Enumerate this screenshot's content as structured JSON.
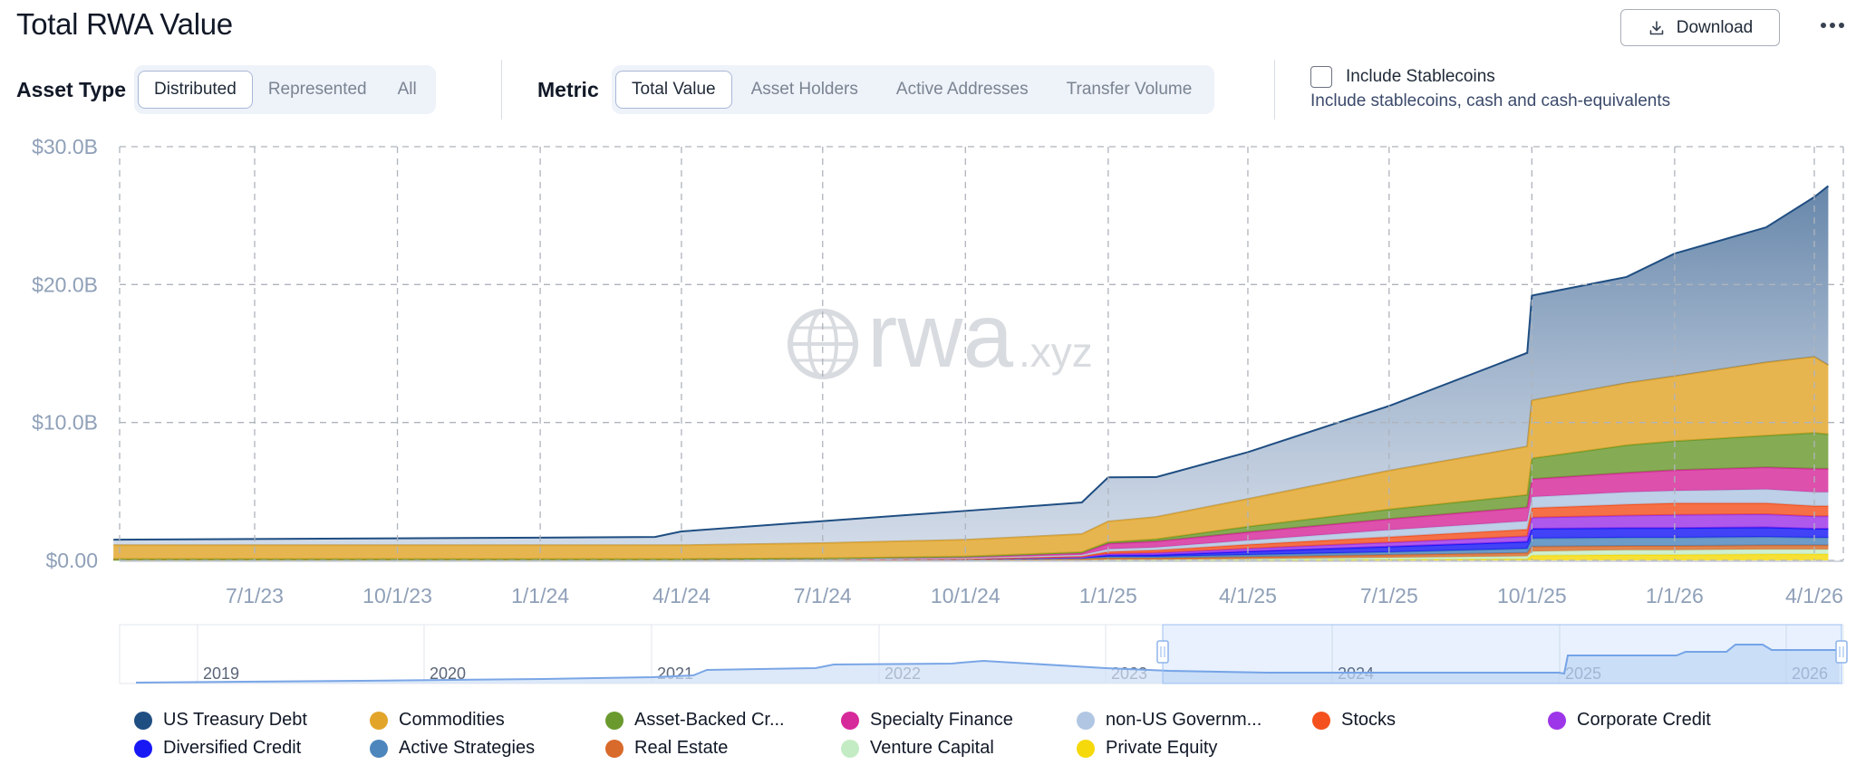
{
  "header": {
    "title": "Total RWA Value",
    "download_label": "Download",
    "more_icon": "more-horizontal-icon"
  },
  "controls": {
    "asset_type": {
      "label": "Asset Type",
      "options": [
        "Distributed",
        "Represented",
        "All"
      ],
      "selected": "Distributed"
    },
    "metric": {
      "label": "Metric",
      "options": [
        "Total Value",
        "Asset Holders",
        "Active Addresses",
        "Transfer Volume"
      ],
      "selected": "Total Value"
    },
    "stablecoins": {
      "label": "Include Stablecoins",
      "description": "Include stablecoins, cash and cash-equivalents",
      "checked": false
    }
  },
  "watermark": {
    "main": "rwa",
    "suffix": ".xyz"
  },
  "chart_data": {
    "type": "area",
    "stacked": true,
    "y_ticks": [
      "$30.0B",
      "$20.0B",
      "$10.0B",
      "$0.00"
    ],
    "ylim": [
      0,
      30
    ],
    "y_unit": "$B",
    "x_ticks": [
      "7/1/23",
      "10/1/23",
      "1/1/24",
      "4/1/24",
      "7/1/24",
      "10/1/24",
      "1/1/25",
      "4/1/25",
      "7/1/25",
      "10/1/25",
      "1/1/26",
      "4/1/26"
    ],
    "x": [
      "2023-04-01",
      "2023-07-01",
      "2023-10-01",
      "2024-01-01",
      "2024-03-15",
      "2024-04-01",
      "2024-07-01",
      "2024-10-01",
      "2024-12-15",
      "2025-01-01",
      "2025-02-01",
      "2025-04-01",
      "2025-07-01",
      "2025-09-28",
      "2025-10-01",
      "2025-12-01",
      "2026-01-01",
      "2026-03-01",
      "2026-04-01",
      "2026-04-10"
    ],
    "grid": true,
    "series": [
      {
        "name": "Private Equity",
        "color": "#f5d90a",
        "values": [
          0,
          0,
          0,
          0,
          0,
          0,
          0,
          0,
          0,
          0,
          0,
          0,
          0.05,
          0.1,
          0.35,
          0.4,
          0.4,
          0.45,
          0.45,
          0.45
        ]
      },
      {
        "name": "Venture Capital",
        "color": "#c4ecc4",
        "values": [
          0,
          0,
          0,
          0,
          0,
          0,
          0,
          0,
          0.02,
          0.05,
          0.05,
          0.1,
          0.15,
          0.2,
          0.3,
          0.35,
          0.35,
          0.35,
          0.35,
          0.35
        ]
      },
      {
        "name": "Real Estate",
        "color": "#d86a2b",
        "values": [
          0.1,
          0.1,
          0.1,
          0.1,
          0.1,
          0.1,
          0.1,
          0.1,
          0.1,
          0.12,
          0.12,
          0.15,
          0.2,
          0.25,
          0.35,
          0.3,
          0.3,
          0.3,
          0.3,
          0.3
        ]
      },
      {
        "name": "Active Strategies",
        "color": "#4d86bd",
        "values": [
          0,
          0,
          0,
          0,
          0,
          0,
          0,
          0,
          0.05,
          0.1,
          0.1,
          0.15,
          0.2,
          0.3,
          0.6,
          0.6,
          0.6,
          0.6,
          0.55,
          0.55
        ]
      },
      {
        "name": "Diversified Credit",
        "color": "#1818f5",
        "values": [
          0,
          0,
          0,
          0,
          0,
          0,
          0,
          0.02,
          0.05,
          0.1,
          0.12,
          0.25,
          0.4,
          0.5,
          0.7,
          0.7,
          0.7,
          0.7,
          0.65,
          0.65
        ]
      },
      {
        "name": "Corporate Credit",
        "color": "#9d35e8",
        "values": [
          0,
          0,
          0,
          0,
          0,
          0,
          0,
          0,
          0.03,
          0.1,
          0.15,
          0.2,
          0.3,
          0.4,
          0.8,
          0.9,
          0.95,
          0.95,
          0.9,
          0.9
        ]
      },
      {
        "name": "Stocks",
        "color": "#f4511e",
        "values": [
          0,
          0,
          0,
          0,
          0,
          0,
          0,
          0,
          0.05,
          0.15,
          0.2,
          0.3,
          0.4,
          0.5,
          0.7,
          0.8,
          0.85,
          0.8,
          0.75,
          0.75
        ]
      },
      {
        "name": "non-US Government Debt",
        "color": "#b0c6e2",
        "values": [
          0,
          0,
          0,
          0,
          0,
          0,
          0,
          0.05,
          0.1,
          0.2,
          0.2,
          0.3,
          0.5,
          0.6,
          0.8,
          0.9,
          0.9,
          1.0,
          1.0,
          1.0
        ]
      },
      {
        "name": "Specialty Finance",
        "color": "#d6299a",
        "values": [
          0,
          0,
          0,
          0,
          0,
          0,
          0.05,
          0.1,
          0.15,
          0.4,
          0.45,
          0.6,
          0.8,
          1.0,
          1.3,
          1.4,
          1.5,
          1.6,
          1.7,
          1.7
        ]
      },
      {
        "name": "Asset-Backed Credit",
        "color": "#6a9a2e",
        "values": [
          0,
          0,
          0,
          0,
          0,
          0,
          0,
          0.02,
          0.05,
          0.1,
          0.15,
          0.4,
          0.7,
          0.9,
          1.5,
          2.0,
          2.1,
          2.3,
          2.6,
          2.5
        ]
      },
      {
        "name": "Commodities",
        "color": "#e2a52a",
        "values": [
          1.0,
          1.0,
          1.0,
          1.0,
          1.0,
          1.0,
          1.1,
          1.2,
          1.3,
          1.5,
          1.6,
          2.0,
          2.8,
          3.5,
          4.2,
          4.5,
          4.7,
          5.3,
          5.5,
          5.0
        ]
      },
      {
        "name": "US Treasury Debt",
        "color": "#1f4e82",
        "values": [
          0.4,
          0.45,
          0.5,
          0.55,
          0.6,
          1.0,
          1.6,
          2.1,
          2.3,
          3.2,
          2.9,
          3.4,
          4.7,
          6.8,
          7.6,
          7.7,
          8.9,
          9.8,
          11.6,
          13.0
        ]
      }
    ]
  },
  "navigator": {
    "years": [
      "2019",
      "2020",
      "2021",
      "2022",
      "2023",
      "2024",
      "2025",
      "2026"
    ]
  },
  "legend": [
    {
      "label": "US Treasury Debt",
      "color": "#1f4e82"
    },
    {
      "label": "Commodities",
      "color": "#e2a52a"
    },
    {
      "label": "Asset-Backed Cr...",
      "color": "#6a9a2e"
    },
    {
      "label": "Specialty Finance",
      "color": "#d6299a"
    },
    {
      "label": "non-US Governm...",
      "color": "#b0c6e2"
    },
    {
      "label": "Stocks",
      "color": "#f4511e"
    },
    {
      "label": "Corporate Credit",
      "color": "#9d35e8"
    },
    {
      "label": "Diversified Credit",
      "color": "#1818f5"
    },
    {
      "label": "Active Strategies",
      "color": "#4d86bd"
    },
    {
      "label": "Real Estate",
      "color": "#d86a2b"
    },
    {
      "label": "Venture Capital",
      "color": "#c4ecc4"
    },
    {
      "label": "Private Equity",
      "color": "#f5d90a"
    }
  ]
}
